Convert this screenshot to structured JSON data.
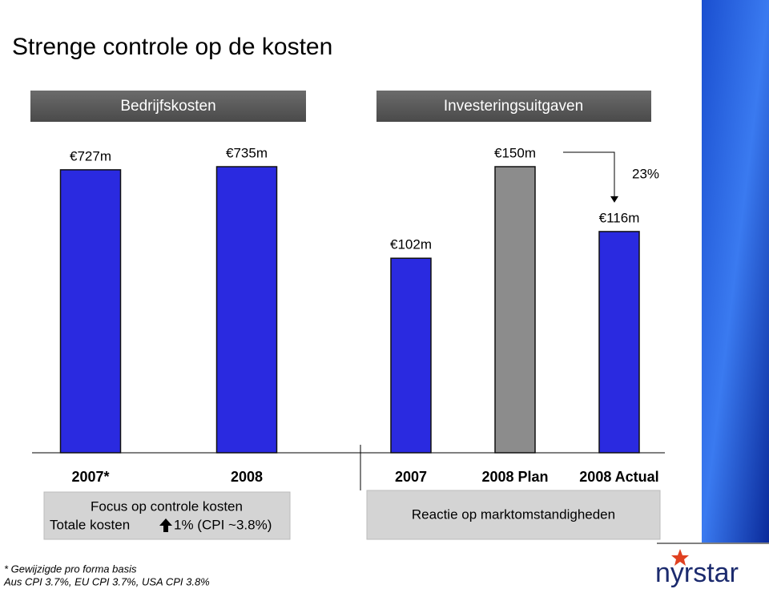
{
  "title": "Strenge controle op de kosten",
  "chart_data": [
    {
      "type": "bar",
      "title": "Bedrijfskosten",
      "categories": [
        "2007*",
        "2008"
      ],
      "values": [
        727,
        735
      ],
      "value_labels": [
        "€727m",
        "€735m"
      ],
      "colors": [
        "#2a2ae0",
        "#2a2ae0"
      ]
    },
    {
      "type": "bar",
      "title": "Investeringsuitgaven",
      "categories": [
        "2007",
        "2008 Plan",
        "2008 Actual"
      ],
      "values": [
        102,
        150,
        116
      ],
      "value_labels": [
        "€102m",
        "€150m",
        "€116m"
      ],
      "colors": [
        "#2a2ae0",
        "#8c8c8c",
        "#2a2ae0"
      ],
      "annotation": "23%"
    }
  ],
  "notes": {
    "left_line1": "Focus op controle kosten",
    "left_line2a": "Totale kosten",
    "left_line2b": "1% (CPI ~3.8%)",
    "right": "Reactie op marktomstandigheden"
  },
  "footnotes": [
    "* Gewijzigde pro forma basis",
    "Aus CPI 3.7%, EU CPI 3.7%, USA CPI 3.8%"
  ],
  "logo": "nyrstar"
}
